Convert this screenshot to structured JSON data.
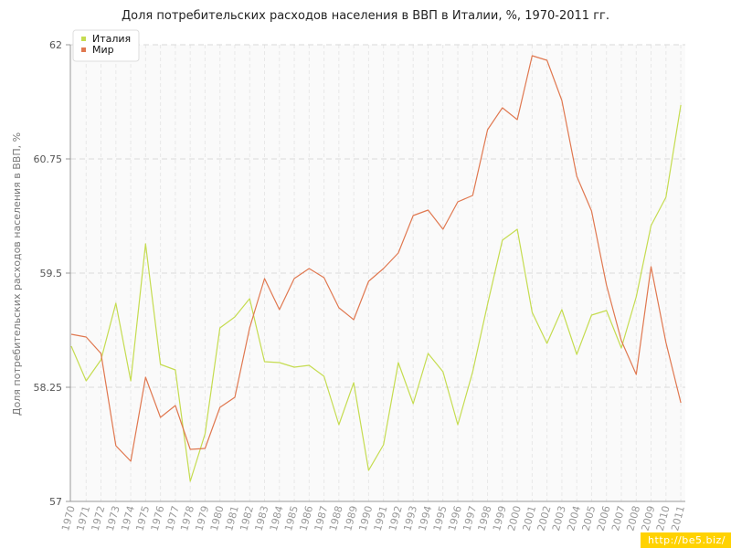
{
  "chart_data": {
    "type": "line",
    "title": "Доля потребительских расходов населения в ВВП в Италии, %, 1970-2011 гг.",
    "xlabel": "",
    "ylabel": "Доля потребительских расходов населения в ВВП, %",
    "ylim": [
      57,
      62
    ],
    "yticks": [
      "57",
      "58.25",
      "59.5",
      "60.75",
      "62"
    ],
    "grid": true,
    "legend_position": "top-left",
    "x": [
      "1970",
      "1971",
      "1972",
      "1973",
      "1974",
      "1975",
      "1976",
      "1977",
      "1978",
      "1979",
      "1980",
      "1981",
      "1982",
      "1983",
      "1984",
      "1985",
      "1986",
      "1987",
      "1988",
      "1989",
      "1990",
      "1991",
      "1992",
      "1993",
      "1994",
      "1995",
      "1996",
      "1997",
      "1998",
      "1999",
      "2000",
      "2001",
      "2002",
      "2003",
      "2004",
      "2005",
      "2006",
      "2007",
      "2008",
      "2009",
      "2010",
      "2011"
    ],
    "series": [
      {
        "name": "Италия",
        "color": "#c5dc50",
        "values": [
          58.7,
          58.32,
          58.55,
          59.17,
          58.32,
          59.82,
          58.5,
          58.44,
          57.22,
          57.74,
          58.9,
          59.02,
          59.22,
          58.53,
          58.52,
          58.47,
          58.49,
          58.37,
          57.84,
          58.3,
          57.34,
          57.62,
          58.52,
          58.07,
          58.62,
          58.42,
          57.84,
          58.42,
          59.16,
          59.86,
          59.98,
          59.07,
          58.73,
          59.1,
          58.61,
          59.04,
          59.09,
          58.68,
          59.24,
          60.02,
          60.33,
          61.34
        ]
      },
      {
        "name": "Мир",
        "color": "#e07850",
        "values": [
          58.83,
          58.8,
          58.62,
          57.61,
          57.44,
          58.36,
          57.92,
          58.05,
          57.57,
          57.58,
          58.03,
          58.14,
          58.9,
          59.44,
          59.1,
          59.44,
          59.55,
          59.45,
          59.12,
          58.99,
          59.41,
          59.55,
          59.72,
          60.13,
          60.19,
          59.98,
          60.28,
          60.35,
          61.07,
          61.31,
          61.18,
          61.88,
          61.83,
          61.39,
          60.56,
          60.18,
          59.37,
          58.76,
          58.39,
          59.57,
          58.74,
          58.08
        ]
      }
    ]
  },
  "watermark": "http://be5.biz/"
}
